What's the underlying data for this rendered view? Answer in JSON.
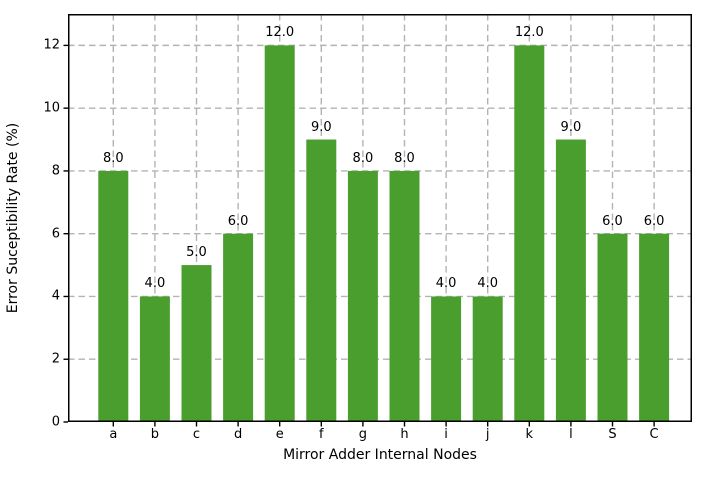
{
  "chart_data": {
    "type": "bar",
    "title": "",
    "xlabel": "Mirror Adder Internal Nodes",
    "ylabel": "Error Suceptibility Rate (%)",
    "categories": [
      "a",
      "b",
      "c",
      "d",
      "e",
      "f",
      "g",
      "h",
      "i",
      "j",
      "k",
      "l",
      "S",
      "C"
    ],
    "values": [
      8,
      4,
      5,
      6,
      12,
      9,
      8,
      8,
      4,
      4,
      12,
      9,
      6,
      6
    ],
    "value_labels": [
      "8.0",
      "4.0",
      "5.0",
      "6.0",
      "12.0",
      "9.0",
      "8.0",
      "8.0",
      "4.0",
      "4.0",
      "12.0",
      "9.0",
      "6.0",
      "6.0"
    ],
    "yticks": [
      0,
      2,
      4,
      6,
      8,
      10,
      12
    ],
    "ytick_labels": [
      "0",
      "2",
      "4",
      "6",
      "8",
      "10",
      "12"
    ],
    "ylim": [
      0,
      13
    ],
    "grid": "on",
    "grid_style": "dashed",
    "legend": "none",
    "colors": {
      "bar": "#4a9e2d",
      "grid": "#b3b3b3",
      "spine": "#000000",
      "text": "#000000",
      "background": "#ffffff"
    }
  }
}
